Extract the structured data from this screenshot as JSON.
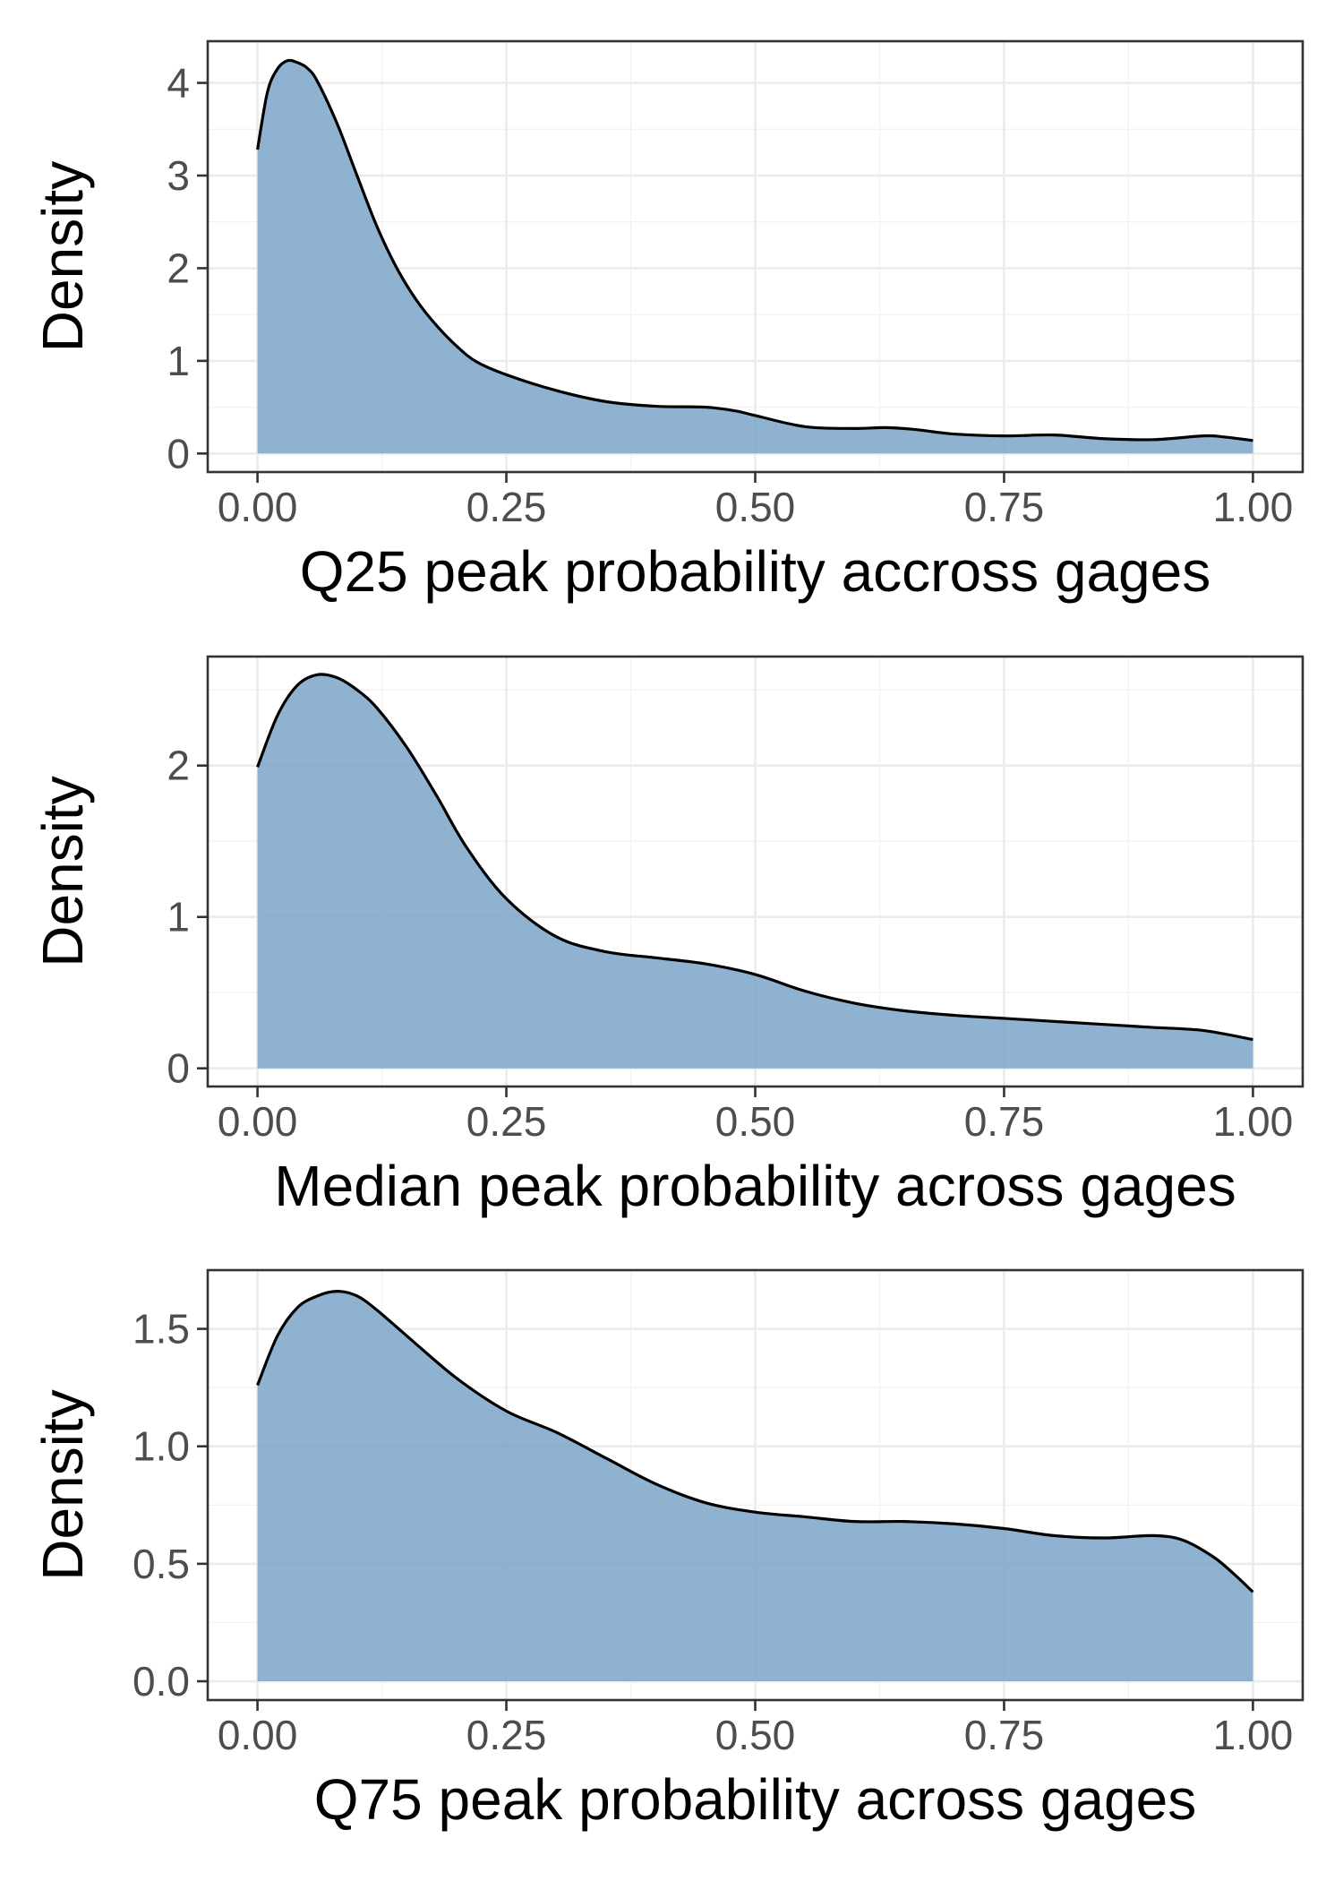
{
  "chart_data": [
    {
      "type": "area",
      "xlabel": "Q25 peak probability accross gages",
      "ylabel": "Density",
      "xlim": [
        -0.05,
        1.05
      ],
      "ylim": [
        -0.2,
        4.45
      ],
      "x_ticks": [
        0,
        0.25,
        0.5,
        0.75,
        1
      ],
      "x_tick_labels": [
        "0.00",
        "0.25",
        "0.50",
        "0.75",
        "1.00"
      ],
      "y_ticks": [
        0,
        1,
        2,
        3,
        4
      ],
      "y_tick_labels": [
        "0",
        "1",
        "2",
        "3",
        "4"
      ],
      "grid": true,
      "fill_color": "#7ba4c9",
      "line_color": "#000000",
      "series": [
        {
          "x": [
            0,
            0.01,
            0.02,
            0.03,
            0.04,
            0.05,
            0.06,
            0.08,
            0.1,
            0.12,
            0.14,
            0.16,
            0.18,
            0.2,
            0.22,
            0.25,
            0.3,
            0.35,
            0.4,
            0.45,
            0.48,
            0.5,
            0.55,
            0.6,
            0.63,
            0.66,
            0.7,
            0.75,
            0.8,
            0.85,
            0.9,
            0.95,
            0.97,
            1.0
          ],
          "y": [
            3.28,
            3.9,
            4.15,
            4.24,
            4.22,
            4.16,
            4.02,
            3.56,
            3.0,
            2.45,
            2.0,
            1.65,
            1.38,
            1.16,
            0.99,
            0.85,
            0.68,
            0.56,
            0.51,
            0.5,
            0.46,
            0.41,
            0.29,
            0.27,
            0.28,
            0.26,
            0.21,
            0.19,
            0.2,
            0.16,
            0.15,
            0.19,
            0.18,
            0.14
          ]
        }
      ]
    },
    {
      "type": "area",
      "xlabel": "Median peak probability across gages",
      "ylabel": "Density",
      "xlim": [
        -0.05,
        1.05
      ],
      "ylim": [
        -0.12,
        2.72
      ],
      "x_ticks": [
        0,
        0.25,
        0.5,
        0.75,
        1
      ],
      "x_tick_labels": [
        "0.00",
        "0.25",
        "0.50",
        "0.75",
        "1.00"
      ],
      "y_ticks": [
        0,
        1,
        2
      ],
      "y_tick_labels": [
        "0",
        "1",
        "2"
      ],
      "grid": true,
      "fill_color": "#7ba4c9",
      "line_color": "#000000",
      "series": [
        {
          "x": [
            0,
            0.02,
            0.04,
            0.06,
            0.08,
            0.1,
            0.12,
            0.15,
            0.18,
            0.21,
            0.25,
            0.3,
            0.35,
            0.4,
            0.45,
            0.5,
            0.55,
            0.6,
            0.65,
            0.7,
            0.75,
            0.8,
            0.85,
            0.9,
            0.95,
            1.0
          ],
          "y": [
            1.99,
            2.33,
            2.53,
            2.6,
            2.58,
            2.5,
            2.38,
            2.12,
            1.8,
            1.46,
            1.12,
            0.87,
            0.77,
            0.73,
            0.69,
            0.62,
            0.51,
            0.43,
            0.38,
            0.35,
            0.33,
            0.31,
            0.29,
            0.27,
            0.25,
            0.19
          ]
        }
      ]
    },
    {
      "type": "area",
      "xlabel": "Q75 peak probability across gages",
      "ylabel": "Density",
      "xlim": [
        -0.05,
        1.05
      ],
      "ylim": [
        -0.08,
        1.75
      ],
      "x_ticks": [
        0,
        0.25,
        0.5,
        0.75,
        1
      ],
      "x_tick_labels": [
        "0.00",
        "0.25",
        "0.50",
        "0.75",
        "1.00"
      ],
      "y_ticks": [
        0,
        0.5,
        1.0,
        1.5
      ],
      "y_tick_labels": [
        "0.0",
        "0.5",
        "1.0",
        "1.5"
      ],
      "grid": true,
      "fill_color": "#7ba4c9",
      "line_color": "#000000",
      "series": [
        {
          "x": [
            0,
            0.02,
            0.04,
            0.06,
            0.08,
            0.1,
            0.12,
            0.15,
            0.2,
            0.25,
            0.3,
            0.35,
            0.4,
            0.45,
            0.5,
            0.55,
            0.6,
            0.65,
            0.7,
            0.75,
            0.8,
            0.85,
            0.9,
            0.93,
            0.96,
            0.98,
            1.0
          ],
          "y": [
            1.26,
            1.47,
            1.59,
            1.64,
            1.66,
            1.64,
            1.58,
            1.47,
            1.29,
            1.15,
            1.06,
            0.95,
            0.84,
            0.76,
            0.72,
            0.7,
            0.68,
            0.68,
            0.67,
            0.65,
            0.62,
            0.61,
            0.62,
            0.6,
            0.53,
            0.46,
            0.38
          ]
        }
      ]
    }
  ]
}
